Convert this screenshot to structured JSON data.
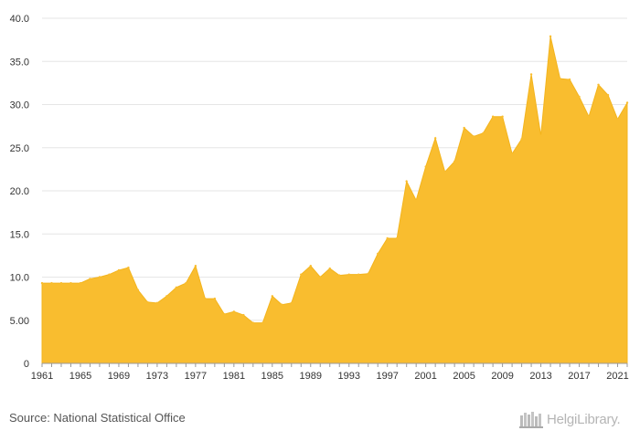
{
  "source_text": "Source: National Statistical Office",
  "logo_text": "HelgiLibrary.",
  "chart_data": {
    "type": "area",
    "title": "",
    "xlabel": "",
    "ylabel": "",
    "color": "#f9bd2f",
    "grid": true,
    "ylim": [
      0,
      40
    ],
    "y_ticks": [
      "0",
      "5.00",
      "10.0",
      "15.0",
      "20.0",
      "25.0",
      "30.0",
      "35.0",
      "40.0"
    ],
    "x_ticks": [
      "1961",
      "1965",
      "1969",
      "1973",
      "1977",
      "1981",
      "1985",
      "1989",
      "1993",
      "1997",
      "2001",
      "2005",
      "2009",
      "2013",
      "2017",
      "2021"
    ],
    "x": [
      1961,
      1962,
      1963,
      1964,
      1965,
      1966,
      1967,
      1968,
      1969,
      1970,
      1971,
      1972,
      1973,
      1974,
      1975,
      1976,
      1977,
      1978,
      1979,
      1980,
      1981,
      1982,
      1983,
      1984,
      1985,
      1986,
      1987,
      1988,
      1989,
      1990,
      1991,
      1992,
      1993,
      1994,
      1995,
      1996,
      1997,
      1998,
      1999,
      2000,
      2001,
      2002,
      2003,
      2004,
      2005,
      2006,
      2007,
      2008,
      2009,
      2010,
      2011,
      2012,
      2013,
      2014,
      2015,
      2016,
      2017,
      2018,
      2019,
      2020,
      2021,
      2022
    ],
    "values": [
      9.3,
      9.3,
      9.3,
      9.3,
      9.3,
      9.8,
      10.0,
      10.3,
      10.8,
      11.1,
      8.5,
      7.1,
      7.0,
      7.8,
      8.8,
      9.3,
      11.3,
      7.5,
      7.5,
      5.7,
      6.0,
      5.6,
      4.7,
      4.7,
      7.8,
      6.8,
      7.0,
      10.3,
      11.3,
      10.0,
      11.0,
      10.2,
      10.3,
      10.3,
      10.4,
      12.7,
      14.5,
      14.5,
      21.1,
      18.9,
      22.8,
      26.1,
      22.2,
      23.4,
      27.3,
      26.3,
      26.7,
      28.6,
      28.6,
      24.3,
      26.0,
      33.5,
      26.4,
      37.9,
      33.0,
      32.9,
      30.9,
      28.6,
      32.3,
      31.1,
      28.3,
      30.2
    ]
  }
}
